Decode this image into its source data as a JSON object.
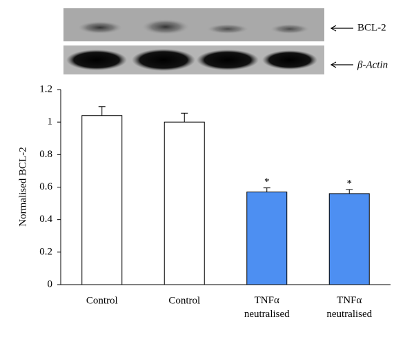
{
  "chart_data": {
    "type": "bar",
    "blot_labels": [
      "BCL-2",
      "β-Actin"
    ],
    "y_label": "Normalised BCL-2",
    "categories": [
      "Control",
      "Control",
      "TNFα neutralised",
      "TNFα neutralised"
    ],
    "values": [
      1.04,
      1.0,
      0.57,
      0.56
    ],
    "errors": [
      0.055,
      0.055,
      0.025,
      0.025
    ],
    "significance_labels": [
      null,
      null,
      "*",
      "*"
    ],
    "colors": [
      "#ffffff",
      "#ffffff",
      "#4d8ff2",
      "#4d8ff2"
    ],
    "ylim": [
      0,
      1.2
    ],
    "yticks": [
      0,
      0.2,
      0.4,
      0.6,
      0.8,
      1,
      1.2
    ],
    "grid": false
  }
}
